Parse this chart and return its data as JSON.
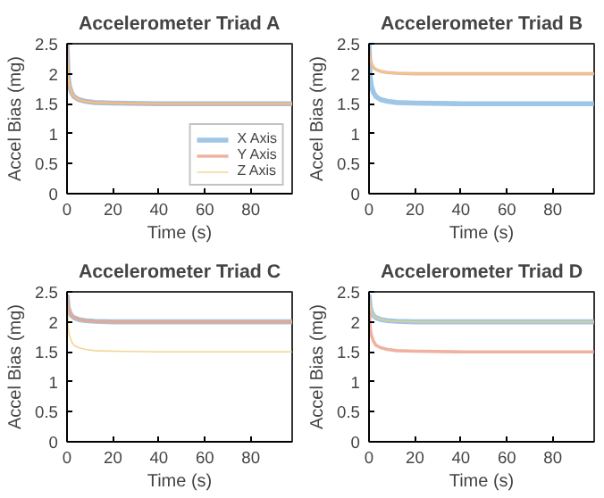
{
  "chart_data": [
    {
      "type": "line",
      "title": "Accelerometer Triad A",
      "xlabel": "Time (s)",
      "ylabel": "Accel Bias (mg)",
      "x": [
        0,
        0.5,
        1,
        2,
        3,
        5,
        8,
        12,
        20,
        40,
        60,
        80,
        98
      ],
      "xlim": [
        0,
        98
      ],
      "xticks": [
        0,
        20,
        40,
        60,
        80
      ],
      "ylim": [
        0,
        2.5
      ],
      "yticks": [
        0,
        0.5,
        1,
        1.5,
        2,
        2.5
      ],
      "grid": false,
      "legend": "bottom right",
      "series": [
        {
          "name": "X Axis",
          "color": "#8fbce0",
          "values": [
            2.5,
            1.95,
            1.8,
            1.68,
            1.62,
            1.57,
            1.54,
            1.52,
            1.51,
            1.5,
            1.5,
            1.5,
            1.5
          ]
        },
        {
          "name": "Y Axis",
          "color": "#eba58e",
          "values": [
            2.5,
            1.95,
            1.8,
            1.68,
            1.62,
            1.57,
            1.54,
            1.52,
            1.51,
            1.5,
            1.5,
            1.5,
            1.5
          ]
        },
        {
          "name": "Z Axis",
          "color": "#f0cf7e",
          "values": [
            2.5,
            1.95,
            1.8,
            1.68,
            1.62,
            1.57,
            1.54,
            1.52,
            1.51,
            1.5,
            1.5,
            1.5,
            1.5
          ]
        }
      ]
    },
    {
      "type": "line",
      "title": "Accelerometer Triad B",
      "xlabel": "Time (s)",
      "ylabel": "Accel Bias (mg)",
      "x": [
        0,
        0.5,
        1,
        2,
        3,
        5,
        8,
        12,
        20,
        40,
        60,
        80,
        98
      ],
      "xlim": [
        0,
        98
      ],
      "xticks": [
        0,
        20,
        40,
        60,
        80
      ],
      "ylim": [
        0,
        2.5
      ],
      "yticks": [
        0,
        0.5,
        1,
        1.5,
        2,
        2.5
      ],
      "grid": false,
      "series": [
        {
          "color": "#8fbce0",
          "values": [
            2.5,
            1.95,
            1.8,
            1.68,
            1.62,
            1.57,
            1.54,
            1.52,
            1.51,
            1.5,
            1.5,
            1.5,
            1.5
          ]
        },
        {
          "color": "#eba58e",
          "values": [
            2.4,
            2.25,
            2.17,
            2.1,
            2.07,
            2.04,
            2.02,
            2.01,
            2.0,
            2.0,
            2.0,
            2.0,
            2.0
          ]
        },
        {
          "color": "#f0cf7e",
          "values": [
            2.4,
            2.25,
            2.17,
            2.1,
            2.07,
            2.04,
            2.02,
            2.01,
            2.0,
            2.0,
            2.0,
            2.0,
            2.0
          ]
        }
      ]
    },
    {
      "type": "line",
      "title": "Accelerometer Triad C",
      "xlabel": "Time (s)",
      "ylabel": "Accel Bias (mg)",
      "x": [
        0,
        0.5,
        1,
        2,
        3,
        5,
        8,
        12,
        20,
        40,
        60,
        80,
        98
      ],
      "xlim": [
        0,
        98
      ],
      "xticks": [
        0,
        20,
        40,
        60,
        80
      ],
      "ylim": [
        0,
        2.5
      ],
      "yticks": [
        0,
        0.5,
        1,
        1.5,
        2,
        2.5
      ],
      "grid": false,
      "series": [
        {
          "color": "#8fbce0",
          "values": [
            2.45,
            2.25,
            2.17,
            2.1,
            2.07,
            2.04,
            2.02,
            2.01,
            2.0,
            2.0,
            2.0,
            2.0,
            2.0
          ]
        },
        {
          "color": "#eba58e",
          "values": [
            2.45,
            2.25,
            2.17,
            2.1,
            2.07,
            2.04,
            2.02,
            2.01,
            2.0,
            2.0,
            2.0,
            2.0,
            2.0
          ]
        },
        {
          "color": "#f0cf7e",
          "values": [
            2.4,
            1.9,
            1.78,
            1.67,
            1.61,
            1.57,
            1.54,
            1.52,
            1.51,
            1.5,
            1.5,
            1.5,
            1.5
          ]
        }
      ]
    },
    {
      "type": "line",
      "title": "Accelerometer Triad D",
      "xlabel": "Time (s)",
      "ylabel": "Accel Bias (mg)",
      "x": [
        0,
        0.5,
        1,
        2,
        3,
        5,
        8,
        12,
        20,
        40,
        60,
        80,
        98
      ],
      "xlim": [
        0,
        98
      ],
      "xticks": [
        0,
        20,
        40,
        60,
        80
      ],
      "ylim": [
        0,
        2.5
      ],
      "yticks": [
        0,
        0.5,
        1,
        1.5,
        2,
        2.5
      ],
      "grid": false,
      "series": [
        {
          "color": "#8fbce0",
          "values": [
            2.45,
            2.25,
            2.17,
            2.1,
            2.07,
            2.04,
            2.02,
            2.01,
            2.0,
            2.0,
            2.0,
            2.0,
            2.0
          ]
        },
        {
          "color": "#eba58e",
          "values": [
            2.4,
            1.9,
            1.78,
            1.67,
            1.61,
            1.57,
            1.54,
            1.52,
            1.51,
            1.5,
            1.5,
            1.5,
            1.5
          ]
        },
        {
          "color": "#f0cf7e",
          "values": [
            2.45,
            2.25,
            2.17,
            2.1,
            2.07,
            2.04,
            2.02,
            2.01,
            2.0,
            2.0,
            2.0,
            2.0,
            2.0
          ]
        }
      ]
    }
  ]
}
